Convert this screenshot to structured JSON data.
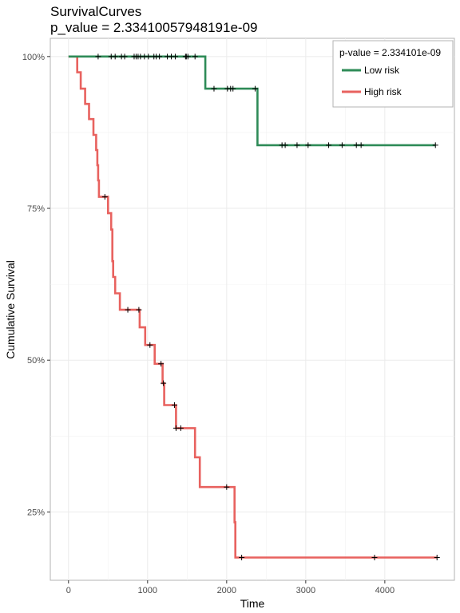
{
  "chart_data": {
    "type": "line",
    "title_line1": "SurvivalCurves",
    "title_line2": "p_value = 2.33410057948191e-09",
    "xlabel": "Time",
    "ylabel": "Cumulative Survival",
    "xlim": [
      -230,
      4880
    ],
    "ylim": [
      0.1375,
      1.03
    ],
    "x_ticks": [
      0,
      1000,
      2000,
      3000,
      4000
    ],
    "x_tick_labels": [
      "0",
      "1000",
      "2000",
      "3000",
      "4000"
    ],
    "y_ticks": [
      0.25,
      0.5,
      0.75,
      1.0
    ],
    "y_tick_labels": [
      "25%",
      "50%",
      "75%",
      "100%"
    ],
    "grid": true,
    "legend": {
      "title": "p-value = 2.334101e-09",
      "position": "top-right"
    },
    "series": [
      {
        "name": "Low risk",
        "color": "#2E8B57",
        "step_points": [
          [
            0,
            1.0
          ],
          [
            1730,
            1.0
          ],
          [
            1730,
            0.947
          ],
          [
            2390,
            0.947
          ],
          [
            2390,
            0.854
          ],
          [
            4640,
            0.854
          ]
        ],
        "censor_x": [
          375,
          540,
          590,
          670,
          710,
          830,
          855,
          880,
          910,
          960,
          1010,
          1080,
          1110,
          1150,
          1250,
          1300,
          1350,
          1480,
          1490,
          1510,
          1600,
          1840,
          2010,
          2050,
          2080,
          2360,
          2700,
          2740,
          2890,
          3030,
          3290,
          3460,
          3640,
          3700,
          4640
        ]
      },
      {
        "name": "High risk",
        "color": "#E8625F",
        "step_points": [
          [
            0,
            1.0
          ],
          [
            110,
            1.0
          ],
          [
            110,
            0.974
          ],
          [
            155,
            0.974
          ],
          [
            155,
            0.947
          ],
          [
            210,
            0.947
          ],
          [
            210,
            0.922
          ],
          [
            260,
            0.922
          ],
          [
            260,
            0.897
          ],
          [
            315,
            0.897
          ],
          [
            315,
            0.871
          ],
          [
            350,
            0.871
          ],
          [
            350,
            0.846
          ],
          [
            365,
            0.846
          ],
          [
            365,
            0.821
          ],
          [
            375,
            0.821
          ],
          [
            375,
            0.796
          ],
          [
            385,
            0.796
          ],
          [
            385,
            0.769
          ],
          [
            500,
            0.769
          ],
          [
            500,
            0.742
          ],
          [
            540,
            0.742
          ],
          [
            540,
            0.715
          ],
          [
            555,
            0.715
          ],
          [
            555,
            0.663
          ],
          [
            565,
            0.663
          ],
          [
            565,
            0.637
          ],
          [
            590,
            0.637
          ],
          [
            590,
            0.61
          ],
          [
            650,
            0.61
          ],
          [
            650,
            0.583
          ],
          [
            900,
            0.583
          ],
          [
            900,
            0.554
          ],
          [
            970,
            0.554
          ],
          [
            970,
            0.525
          ],
          [
            1090,
            0.525
          ],
          [
            1090,
            0.494
          ],
          [
            1190,
            0.494
          ],
          [
            1190,
            0.462
          ],
          [
            1210,
            0.462
          ],
          [
            1210,
            0.426
          ],
          [
            1360,
            0.426
          ],
          [
            1360,
            0.388
          ],
          [
            1600,
            0.388
          ],
          [
            1600,
            0.34
          ],
          [
            1660,
            0.34
          ],
          [
            1660,
            0.291
          ],
          [
            2100,
            0.291
          ],
          [
            2100,
            0.233
          ],
          [
            2110,
            0.233
          ],
          [
            2110,
            0.175
          ],
          [
            4660,
            0.175
          ]
        ],
        "censor_x": [
          460,
          750,
          890,
          1030,
          1170,
          1200,
          1340,
          1360,
          1420,
          2000,
          2190,
          3870,
          4660
        ],
        "censor_y": [
          0.769,
          0.583,
          0.583,
          0.525,
          0.494,
          0.462,
          0.426,
          0.388,
          0.388,
          0.291,
          0.175,
          0.175,
          0.175
        ]
      }
    ]
  }
}
